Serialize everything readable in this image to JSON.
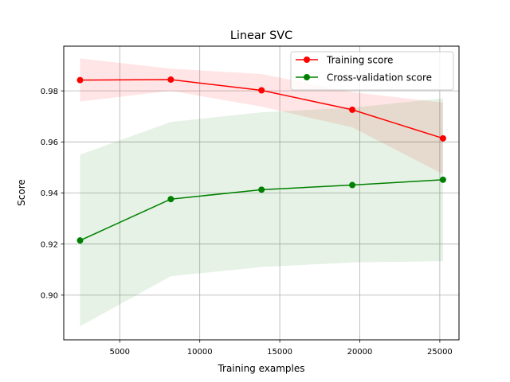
{
  "chart_data": {
    "type": "line",
    "title": "Linear SVC",
    "xlabel": "Training examples",
    "ylabel": "Score",
    "xlim": [
      1500,
      26200
    ],
    "ylim": [
      0.8825,
      0.9975
    ],
    "xticks": [
      5000,
      10000,
      15000,
      20000,
      25000
    ],
    "xtick_labels": [
      "5000",
      "10000",
      "15000",
      "20000",
      "25000"
    ],
    "yticks": [
      0.9,
      0.92,
      0.94,
      0.96,
      0.98
    ],
    "ytick_labels": [
      "0.90",
      "0.92",
      "0.94",
      "0.96",
      "0.98"
    ],
    "grid": true,
    "legend": "upper right",
    "x": [
      2520,
      8190,
      13860,
      19530,
      25200
    ],
    "series": [
      {
        "name": "Training score",
        "color": "#ff0000",
        "values": [
          0.9842,
          0.9844,
          0.9802,
          0.9726,
          0.9614
        ],
        "band_upper": [
          0.9927,
          0.9887,
          0.9866,
          0.9795,
          0.9754
        ],
        "band_lower": [
          0.9758,
          0.98,
          0.9738,
          0.9657,
          0.9474
        ]
      },
      {
        "name": "Cross-validation score",
        "color": "#008000",
        "values": [
          0.9214,
          0.9376,
          0.9413,
          0.9431,
          0.9452
        ],
        "band_upper": [
          0.955,
          0.9678,
          0.9716,
          0.9734,
          0.9771
        ],
        "band_lower": [
          0.8878,
          0.9074,
          0.911,
          0.9128,
          0.9133
        ]
      }
    ]
  }
}
